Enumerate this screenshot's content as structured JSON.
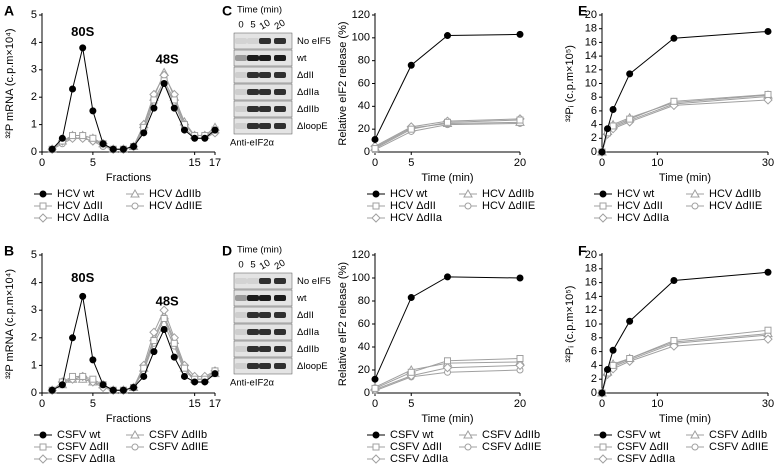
{
  "chart_data": [
    {
      "type": "line",
      "panel_label": "A",
      "xlabel": "Fractions",
      "ylabel": "³²P mRNA (c.p.m×10⁴)",
      "annotations": [
        "80S",
        "48S"
      ],
      "x": [
        1,
        2,
        3,
        4,
        5,
        6,
        7,
        8,
        9,
        10,
        11,
        12,
        13,
        14,
        15,
        16,
        17
      ],
      "xlim": [
        0,
        17
      ],
      "xticks": [
        0,
        5,
        15,
        17
      ],
      "ylim": [
        0,
        5
      ],
      "yticks": [
        0,
        1,
        2,
        3,
        4,
        5
      ],
      "series": [
        {
          "name": "HCV wt",
          "color": "#000000",
          "marker": "filled-circle",
          "values": [
            0.1,
            0.5,
            2.3,
            3.8,
            1.5,
            0.3,
            0.1,
            0.1,
            0.2,
            0.7,
            1.6,
            2.5,
            1.6,
            0.8,
            0.5,
            0.5,
            0.8
          ]
        },
        {
          "name": "HCV ΔdII",
          "color": "#a0a0a0",
          "marker": "square",
          "values": [
            0.1,
            0.4,
            0.6,
            0.6,
            0.5,
            0.3,
            0.1,
            0.1,
            0.2,
            0.9,
            1.9,
            2.6,
            1.9,
            1.0,
            0.6,
            0.6,
            0.8
          ]
        },
        {
          "name": "HCV ΔdIIa",
          "color": "#a0a0a0",
          "marker": "diamond",
          "values": [
            0.1,
            0.4,
            0.5,
            0.5,
            0.4,
            0.3,
            0.1,
            0.1,
            0.2,
            1.0,
            2.1,
            2.8,
            2.1,
            1.0,
            0.6,
            0.6,
            0.7
          ]
        },
        {
          "name": "HCV ΔdIIb",
          "color": "#a0a0a0",
          "marker": "triangle",
          "values": [
            0.1,
            0.4,
            0.6,
            0.6,
            0.5,
            0.3,
            0.1,
            0.1,
            0.2,
            1.0,
            2.0,
            2.9,
            2.0,
            1.1,
            0.6,
            0.6,
            0.9
          ]
        },
        {
          "name": "HCV ΔdIIE",
          "color": "#a0a0a0",
          "marker": "circle",
          "values": [
            0.1,
            0.3,
            0.5,
            0.5,
            0.4,
            0.2,
            0.1,
            0.1,
            0.2,
            0.8,
            1.8,
            2.5,
            1.8,
            0.9,
            0.5,
            0.5,
            0.7
          ]
        }
      ]
    },
    {
      "type": "line",
      "panel_label": "B",
      "xlabel": "Fractions",
      "ylabel": "³²P mRNA (c.p.m×10⁴)",
      "annotations": [
        "80S",
        "48S"
      ],
      "x": [
        1,
        2,
        3,
        4,
        5,
        6,
        7,
        8,
        9,
        10,
        11,
        12,
        13,
        14,
        15,
        16,
        17
      ],
      "xlim": [
        0,
        17
      ],
      "xticks": [
        0,
        5,
        15,
        17
      ],
      "ylim": [
        0,
        5
      ],
      "yticks": [
        0,
        1,
        2,
        3,
        4,
        5
      ],
      "series": [
        {
          "name": "CSFV wt",
          "color": "#000000",
          "marker": "filled-circle",
          "values": [
            0.1,
            0.3,
            2.0,
            3.5,
            1.2,
            0.3,
            0.1,
            0.1,
            0.2,
            0.6,
            1.5,
            2.3,
            1.3,
            0.6,
            0.4,
            0.4,
            0.7
          ]
        },
        {
          "name": "CSFV ΔdII",
          "color": "#a0a0a0",
          "marker": "square",
          "values": [
            0.1,
            0.4,
            0.6,
            0.6,
            0.5,
            0.3,
            0.1,
            0.1,
            0.2,
            0.9,
            1.9,
            2.7,
            1.8,
            0.9,
            0.5,
            0.5,
            0.8
          ]
        },
        {
          "name": "CSFV ΔdIIa",
          "color": "#a0a0a0",
          "marker": "diamond",
          "values": [
            0.1,
            0.4,
            0.5,
            0.6,
            0.4,
            0.2,
            0.1,
            0.1,
            0.2,
            1.0,
            2.2,
            3.0,
            2.0,
            1.0,
            0.6,
            0.6,
            0.8
          ]
        },
        {
          "name": "CSFV ΔdIIb",
          "color": "#a0a0a0",
          "marker": "triangle",
          "values": [
            0.1,
            0.3,
            0.5,
            0.5,
            0.4,
            0.3,
            0.1,
            0.1,
            0.2,
            0.9,
            2.0,
            2.8,
            1.9,
            0.9,
            0.5,
            0.5,
            0.7
          ]
        },
        {
          "name": "CSFV ΔdIIE",
          "color": "#a0a0a0",
          "marker": "circle",
          "values": [
            0.1,
            0.3,
            0.5,
            0.5,
            0.4,
            0.2,
            0.1,
            0.1,
            0.2,
            0.8,
            1.8,
            2.5,
            1.7,
            0.8,
            0.5,
            0.5,
            0.8
          ]
        }
      ]
    },
    {
      "type": "line",
      "panel_label": "C",
      "xlabel": "Time (min)",
      "ylabel": "Relative eIF2 release (%)",
      "x": [
        0,
        5,
        10,
        20
      ],
      "xlim": [
        0,
        20
      ],
      "xticks": [
        0,
        5,
        20
      ],
      "ylim": [
        0,
        120
      ],
      "yticks": [
        0,
        20,
        40,
        60,
        80,
        100,
        120
      ],
      "series": [
        {
          "name": "HCV wt",
          "color": "#000000",
          "marker": "filled-circle",
          "values": [
            11,
            76,
            102,
            103
          ]
        },
        {
          "name": "HCV ΔdII",
          "color": "#a0a0a0",
          "marker": "square",
          "values": [
            3,
            20,
            26,
            28
          ]
        },
        {
          "name": "HCV ΔdIIa",
          "color": "#a0a0a0",
          "marker": "diamond",
          "values": [
            5,
            22,
            27,
            29
          ]
        },
        {
          "name": "HCV ΔdIIb",
          "color": "#a0a0a0",
          "marker": "triangle",
          "values": [
            4,
            21,
            25,
            26
          ]
        },
        {
          "name": "HCV ΔdIIE",
          "color": "#a0a0a0",
          "marker": "circle",
          "values": [
            2,
            18,
            24,
            25
          ]
        }
      ]
    },
    {
      "type": "line",
      "panel_label": "D",
      "xlabel": "Time (min)",
      "ylabel": "Relative eIF2 release (%)",
      "x": [
        0,
        5,
        10,
        20
      ],
      "xlim": [
        0,
        20
      ],
      "xticks": [
        0,
        5,
        20
      ],
      "ylim": [
        0,
        120
      ],
      "yticks": [
        0,
        20,
        40,
        60,
        80,
        100,
        120
      ],
      "series": [
        {
          "name": "CSFV wt",
          "color": "#000000",
          "marker": "filled-circle",
          "values": [
            12,
            83,
            101,
            100
          ]
        },
        {
          "name": "CSFV ΔdII",
          "color": "#a0a0a0",
          "marker": "square",
          "values": [
            4,
            18,
            28,
            30
          ]
        },
        {
          "name": "CSFV ΔdIIa",
          "color": "#a0a0a0",
          "marker": "diamond",
          "values": [
            3,
            15,
            22,
            24
          ]
        },
        {
          "name": "CSFV ΔdIIb",
          "color": "#a0a0a0",
          "marker": "triangle",
          "values": [
            5,
            20,
            26,
            27
          ]
        },
        {
          "name": "CSFV ΔdIIE",
          "color": "#a0a0a0",
          "marker": "circle",
          "values": [
            2,
            14,
            18,
            20
          ]
        }
      ]
    },
    {
      "type": "line",
      "panel_label": "E",
      "xlabel": "Time (min)",
      "ylabel": "³²Pᵢ (c.p.m×10⁵)",
      "x": [
        0,
        1,
        2,
        5,
        13,
        30
      ],
      "xlim": [
        0,
        30
      ],
      "xticks": [
        0,
        10,
        30
      ],
      "ylim": [
        0,
        20
      ],
      "yticks": [
        0,
        2,
        4,
        6,
        8,
        10,
        12,
        14,
        16,
        18,
        20
      ],
      "series": [
        {
          "name": "HCV wt",
          "color": "#000000",
          "marker": "filled-circle",
          "values": [
            0,
            3.4,
            6.2,
            11.4,
            16.6,
            17.6
          ]
        },
        {
          "name": "HCV ΔdII",
          "color": "#a0a0a0",
          "marker": "square",
          "values": [
            0,
            2.8,
            3.8,
            4.8,
            7.4,
            8.4
          ]
        },
        {
          "name": "HCV ΔdIIa",
          "color": "#a0a0a0",
          "marker": "diamond",
          "values": [
            0,
            2.6,
            3.4,
            4.4,
            6.8,
            7.6
          ]
        },
        {
          "name": "HCV ΔdIIb",
          "color": "#a0a0a0",
          "marker": "triangle",
          "values": [
            0,
            3,
            4,
            5,
            7.2,
            8.3
          ]
        },
        {
          "name": "HCV ΔdIIE",
          "color": "#a0a0a0",
          "marker": "circle",
          "values": [
            0,
            2.7,
            3.6,
            4.6,
            7,
            8.1
          ]
        }
      ]
    },
    {
      "type": "line",
      "panel_label": "F",
      "xlabel": "Time (min)",
      "ylabel": "³²Pᵢ (c.p.m×10⁵)",
      "x": [
        0,
        1,
        2,
        5,
        13,
        30
      ],
      "xlim": [
        0,
        30
      ],
      "xticks": [
        0,
        10,
        30
      ],
      "ylim": [
        0,
        20
      ],
      "yticks": [
        0,
        2,
        4,
        6,
        8,
        10,
        12,
        14,
        16,
        18,
        20
      ],
      "series": [
        {
          "name": "CSFV wt",
          "color": "#000000",
          "marker": "filled-circle",
          "values": [
            0,
            3.4,
            6.2,
            10.4,
            16.3,
            17.5
          ]
        },
        {
          "name": "CSFV ΔdII",
          "color": "#a0a0a0",
          "marker": "square",
          "values": [
            0,
            2.9,
            4,
            5,
            7.6,
            9.1
          ]
        },
        {
          "name": "CSFV ΔdIIa",
          "color": "#a0a0a0",
          "marker": "diamond",
          "values": [
            0,
            2.7,
            3.5,
            4.6,
            6.8,
            7.8
          ]
        },
        {
          "name": "CSFV ΔdIIb",
          "color": "#a0a0a0",
          "marker": "triangle",
          "values": [
            0,
            3,
            4.2,
            5,
            7.4,
            8.6
          ]
        },
        {
          "name": "CSFV ΔdIIE",
          "color": "#a0a0a0",
          "marker": "circle",
          "values": [
            0,
            2.8,
            3.8,
            4.8,
            7.2,
            8.4
          ]
        }
      ]
    }
  ],
  "blots": [
    {
      "title": "Time (min)",
      "lanes": [
        "0",
        "5",
        "10",
        "20"
      ],
      "rows": [
        "No eIF5",
        "wt",
        "ΔdII",
        "ΔdIIa",
        "ΔdIIb",
        "ΔloopE"
      ],
      "antibody": "Anti-eIF2α"
    },
    {
      "title": "Time (min)",
      "lanes": [
        "0",
        "5",
        "10",
        "20"
      ],
      "rows": [
        "No eIF5",
        "wt",
        "ΔdII",
        "ΔdIIa",
        "ΔdIIb",
        "ΔloopE"
      ],
      "antibody": "Anti-eIF2α"
    }
  ]
}
